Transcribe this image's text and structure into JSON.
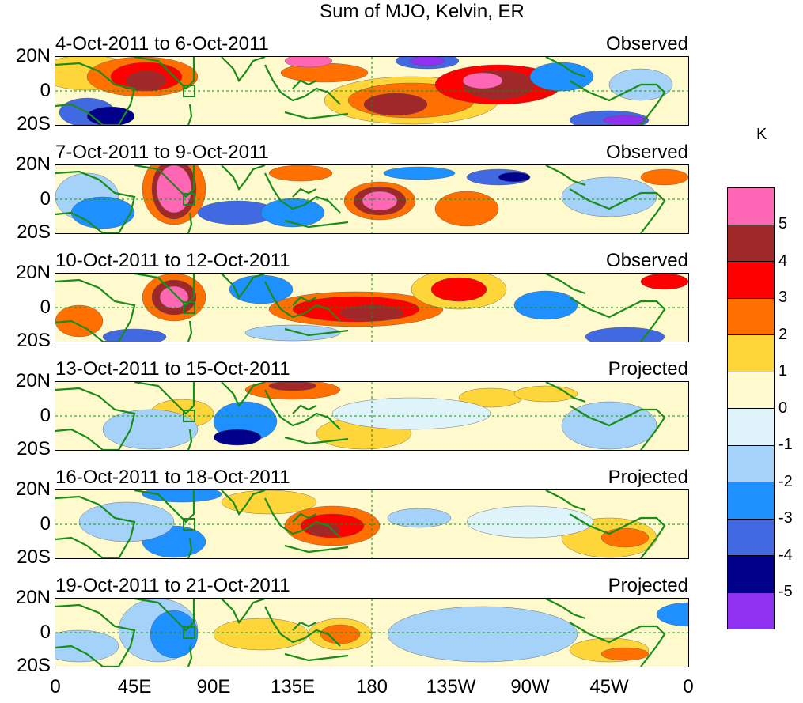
{
  "title": "Sum of MJO, Kelvin, ER",
  "unit": "K",
  "lat_labels": [
    "20N",
    "0",
    "20S"
  ],
  "lon_labels": [
    "0",
    "45E",
    "90E",
    "135E",
    "180",
    "135W",
    "90W",
    "45W",
    "0"
  ],
  "panels": [
    {
      "dates": "4-Oct-2011 to 6-Oct-2011",
      "status": "Observed"
    },
    {
      "dates": "7-Oct-2011 to 9-Oct-2011",
      "status": "Observed"
    },
    {
      "dates": "10-Oct-2011 to 12-Oct-2011",
      "status": "Observed"
    },
    {
      "dates": "13-Oct-2011 to 15-Oct-2011",
      "status": "Projected"
    },
    {
      "dates": "16-Oct-2011 to 18-Oct-2011",
      "status": "Projected"
    },
    {
      "dates": "19-Oct-2011 to 21-Oct-2011",
      "status": "Projected"
    }
  ],
  "colorbar": {
    "ticks": [
      "5",
      "4",
      "3",
      "2",
      "1",
      "0",
      "-1",
      "-2",
      "-3",
      "-4",
      "-5"
    ],
    "colors": [
      "#ff66b3",
      "#a02828",
      "#ff0000",
      "#ff7000",
      "#ffd63a",
      "#fffacd",
      "#dff3fb",
      "#a4d2f9",
      "#1e90ff",
      "#4169e1",
      "#00008b",
      "#9030f0"
    ]
  },
  "map_colors": {
    "coast": "#1a8c1a",
    "equator": "#1a8c1a"
  }
}
